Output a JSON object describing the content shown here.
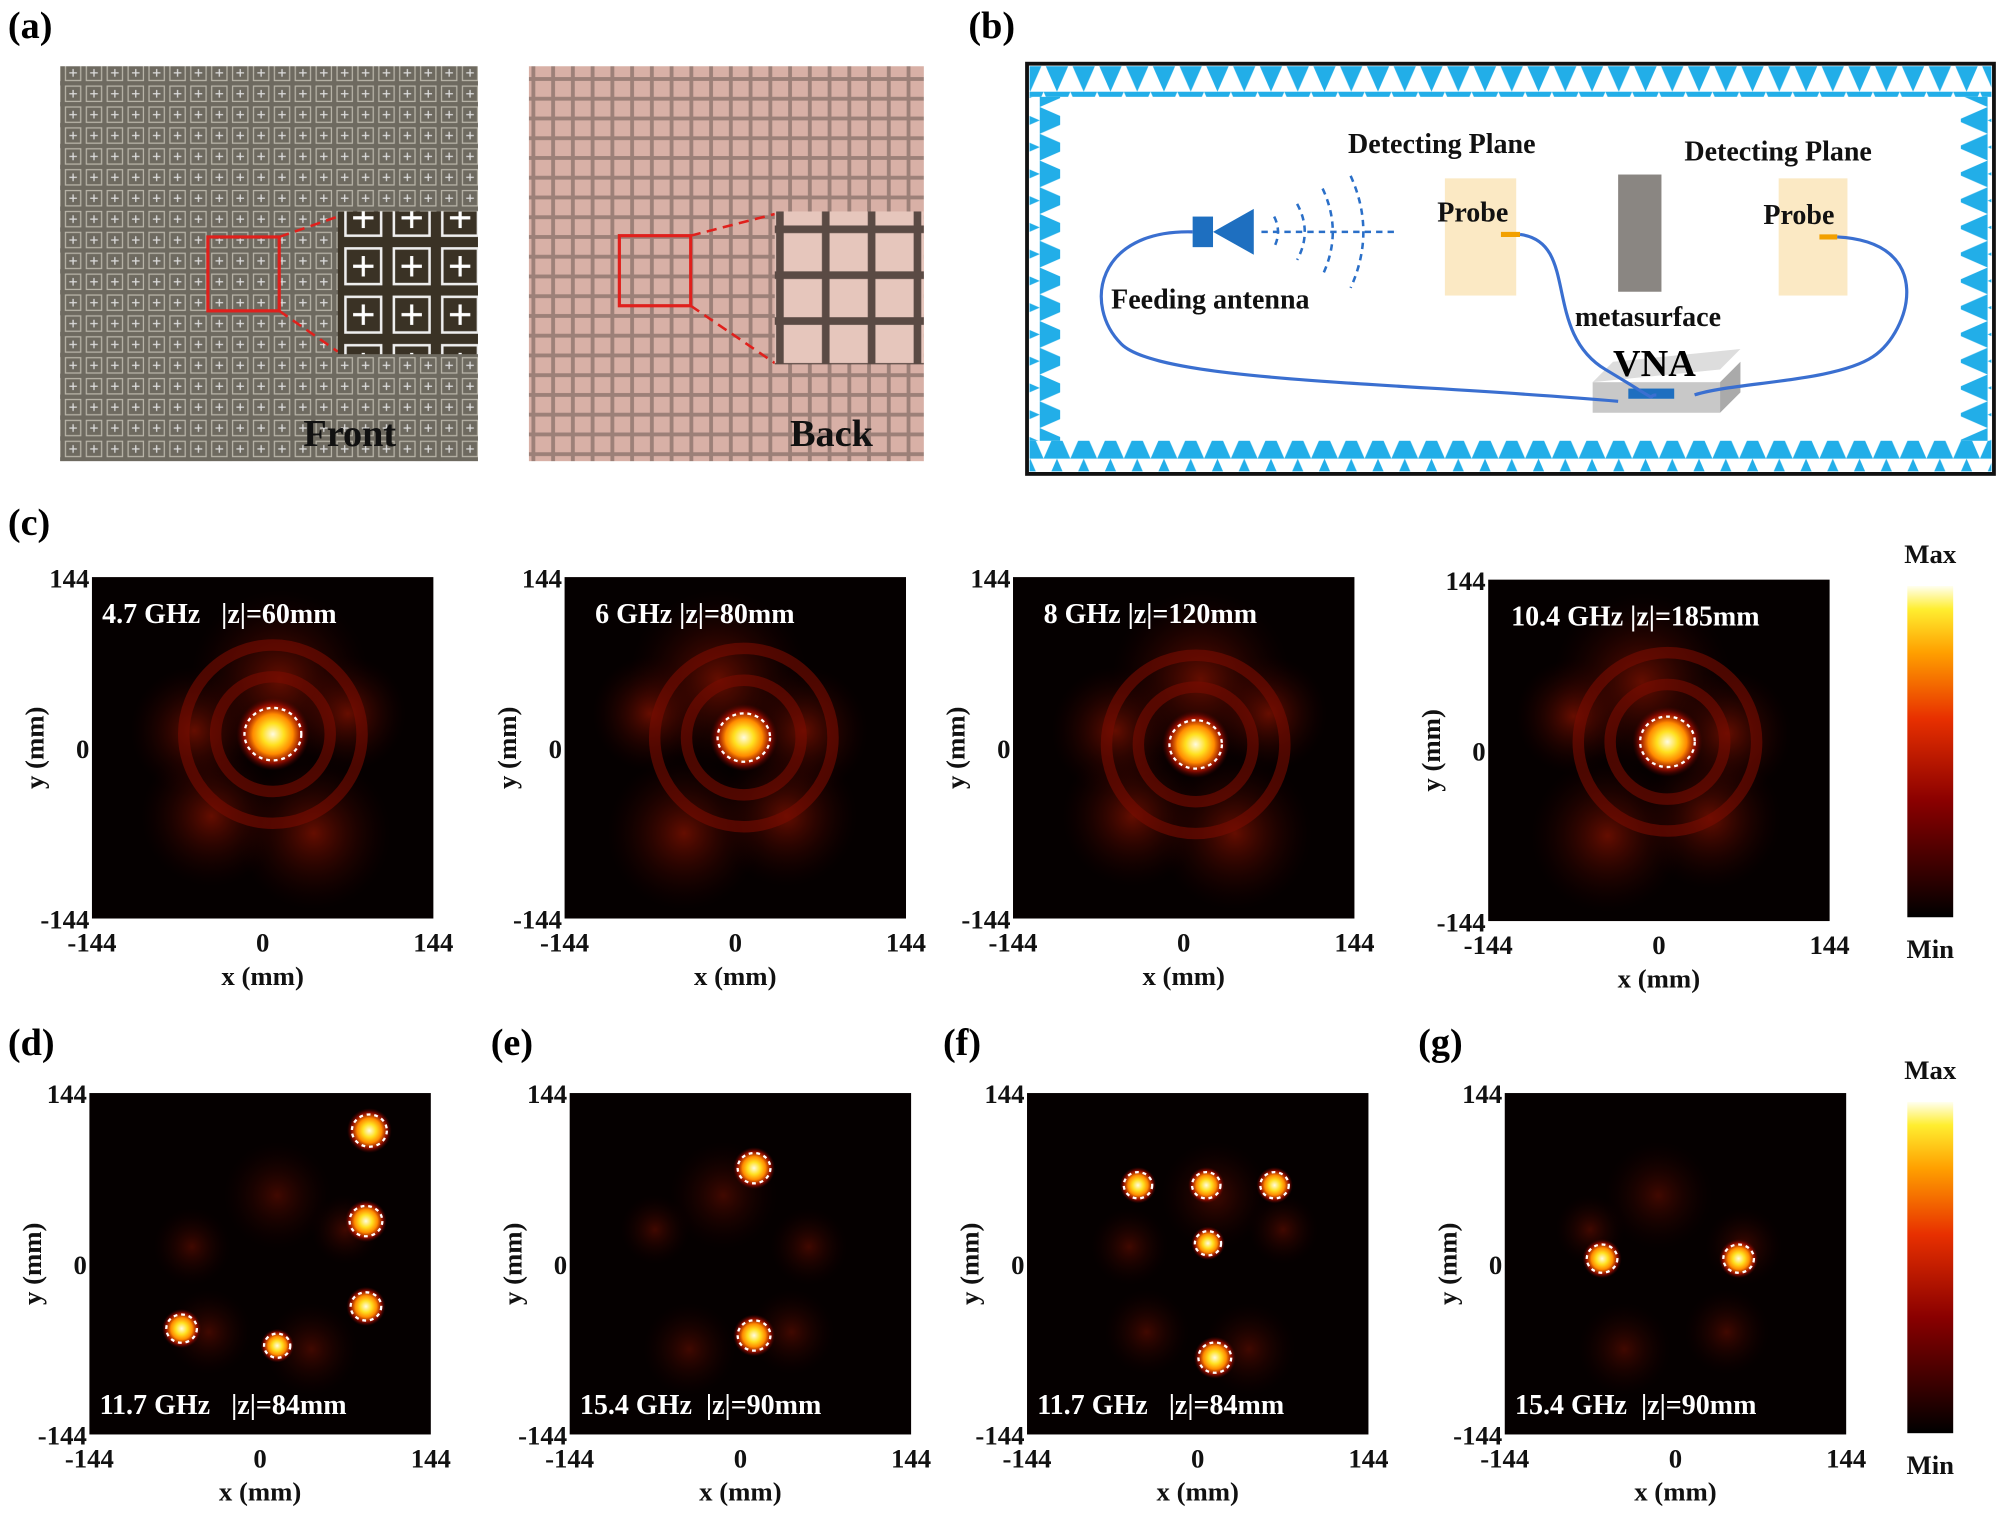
{
  "panel_labels": {
    "a": "(a)",
    "b": "(b)",
    "c": "(c)",
    "d": "(d)",
    "e": "(e)",
    "f": "(f)",
    "g": "(g)"
  },
  "photos": {
    "front": "Front",
    "back": "Back"
  },
  "setup": {
    "detecting_plane_left": "Detecting Plane",
    "detecting_plane_right": "Detecting Plane",
    "probe_left": "Probe",
    "probe_right": "Probe",
    "feeding_antenna": "Feeding antenna",
    "metasurface": "metasurface",
    "vna": "VNA"
  },
  "axes": {
    "xticks": [
      "-144",
      "0",
      "144"
    ],
    "yticks": [
      "144",
      "0",
      "-144"
    ],
    "xlabel": "x (mm)",
    "ylabel": "y (mm)"
  },
  "maps": [
    {
      "caption": "4.7 GHz   |z|=60mm"
    },
    {
      "caption": "6 GHz |z|=80mm"
    },
    {
      "caption": "8 GHz |z|=120mm"
    },
    {
      "caption": "10.4 GHz |z|=185mm"
    },
    {
      "caption": "11.7 GHz   |z|=84mm"
    },
    {
      "caption": "15.4 GHz  |z|=90mm"
    },
    {
      "caption": "11.7 GHz   |z|=84mm"
    },
    {
      "caption": "15.4 GHz  |z|=90mm"
    }
  ],
  "colorbars": [
    {
      "max": "Max",
      "min": "Min"
    },
    {
      "max": "Max",
      "min": "Min"
    }
  ]
}
